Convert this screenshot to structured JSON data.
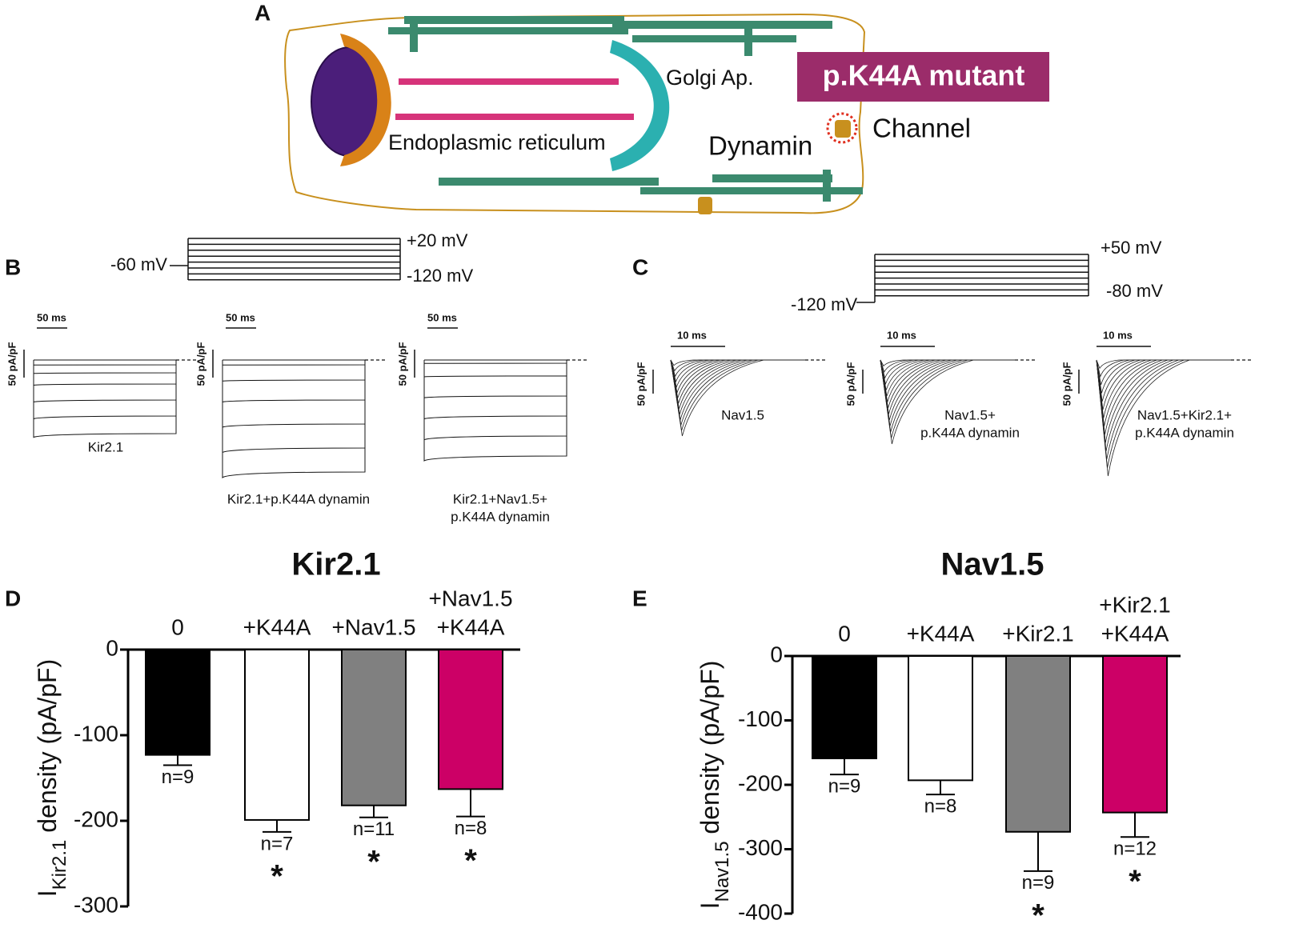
{
  "panel_labels": [
    "A",
    "B",
    "C",
    "D",
    "E"
  ],
  "diagram": {
    "golgi": "Golgi Ap.",
    "mutant": "p.K44A mutant",
    "er": "Endoplasmic reticulum",
    "dynamin": "Dynamin",
    "channel": "Channel"
  },
  "protocol_b": {
    "hold": "-60 mV",
    "top": "+20 mV",
    "bottom": "-120 mV"
  },
  "protocol_c": {
    "hold": "-120 mV",
    "top": "+50 mV",
    "bottom": "-80 mV"
  },
  "traces_b": [
    {
      "time_scale": "50 ms",
      "current_scale": "50 pA/pF",
      "label": [
        "Kir2.1"
      ]
    },
    {
      "time_scale": "50 ms",
      "current_scale": "50 pA/pF",
      "label": [
        "Kir2.1+p.K44A dynamin"
      ]
    },
    {
      "time_scale": "50 ms",
      "current_scale": "50 pA/pF",
      "label": [
        "Kir2.1+Nav1.5+",
        "p.K44A dynamin"
      ]
    }
  ],
  "traces_c": [
    {
      "time_scale": "10 ms",
      "current_scale": "50 pA/pF",
      "label": [
        "Nav1.5"
      ]
    },
    {
      "time_scale": "10 ms",
      "current_scale": "50 pA/pF",
      "label": [
        "Nav1.5+",
        "p.K44A dynamin"
      ]
    },
    {
      "time_scale": "10 ms",
      "current_scale": "50 pA/pF",
      "label": [
        "Nav1.5+Kir2.1+",
        "p.K44A dynamin"
      ]
    }
  ],
  "chart_data": [
    {
      "type": "bar",
      "title": "Kir2.1",
      "ylabel": [
        "I",
        "Kir2.1",
        " density (pA/pF)"
      ],
      "categories": [
        [
          "0"
        ],
        [
          "+K44A"
        ],
        [
          "+Nav1.5"
        ],
        [
          "+Nav1.5",
          "+K44A"
        ]
      ],
      "values": [
        -123,
        -199,
        -182,
        -163
      ],
      "errors": [
        12,
        14,
        14,
        32
      ],
      "colors": [
        "#000000",
        "#ffffff",
        "#808080",
        "#cc0066"
      ],
      "annotations": [
        "n=9",
        "n=7",
        "n=11",
        "n=8"
      ],
      "significance": [
        null,
        "*",
        "*",
        "*"
      ],
      "ylim": [
        -300,
        0
      ],
      "yticks": [
        0,
        -100,
        -200,
        -300
      ]
    },
    {
      "type": "bar",
      "title": "Nav1.5",
      "ylabel": [
        "I",
        "Nav1.5",
        " density (pA/pF)"
      ],
      "categories": [
        [
          "0"
        ],
        [
          "+K44A"
        ],
        [
          "+Kir2.1"
        ],
        [
          "+Kir2.1",
          "+K44A"
        ]
      ],
      "values": [
        -159,
        -193,
        -273,
        -243
      ],
      "errors": [
        25,
        22,
        61,
        38
      ],
      "colors": [
        "#000000",
        "#ffffff",
        "#808080",
        "#cc0066"
      ],
      "annotations": [
        "n=9",
        "n=8",
        "n=9",
        "n=12"
      ],
      "significance": [
        null,
        null,
        "*",
        "*"
      ],
      "ylim": [
        -400,
        0
      ],
      "yticks": [
        0,
        -100,
        -200,
        -300,
        -400
      ]
    }
  ]
}
